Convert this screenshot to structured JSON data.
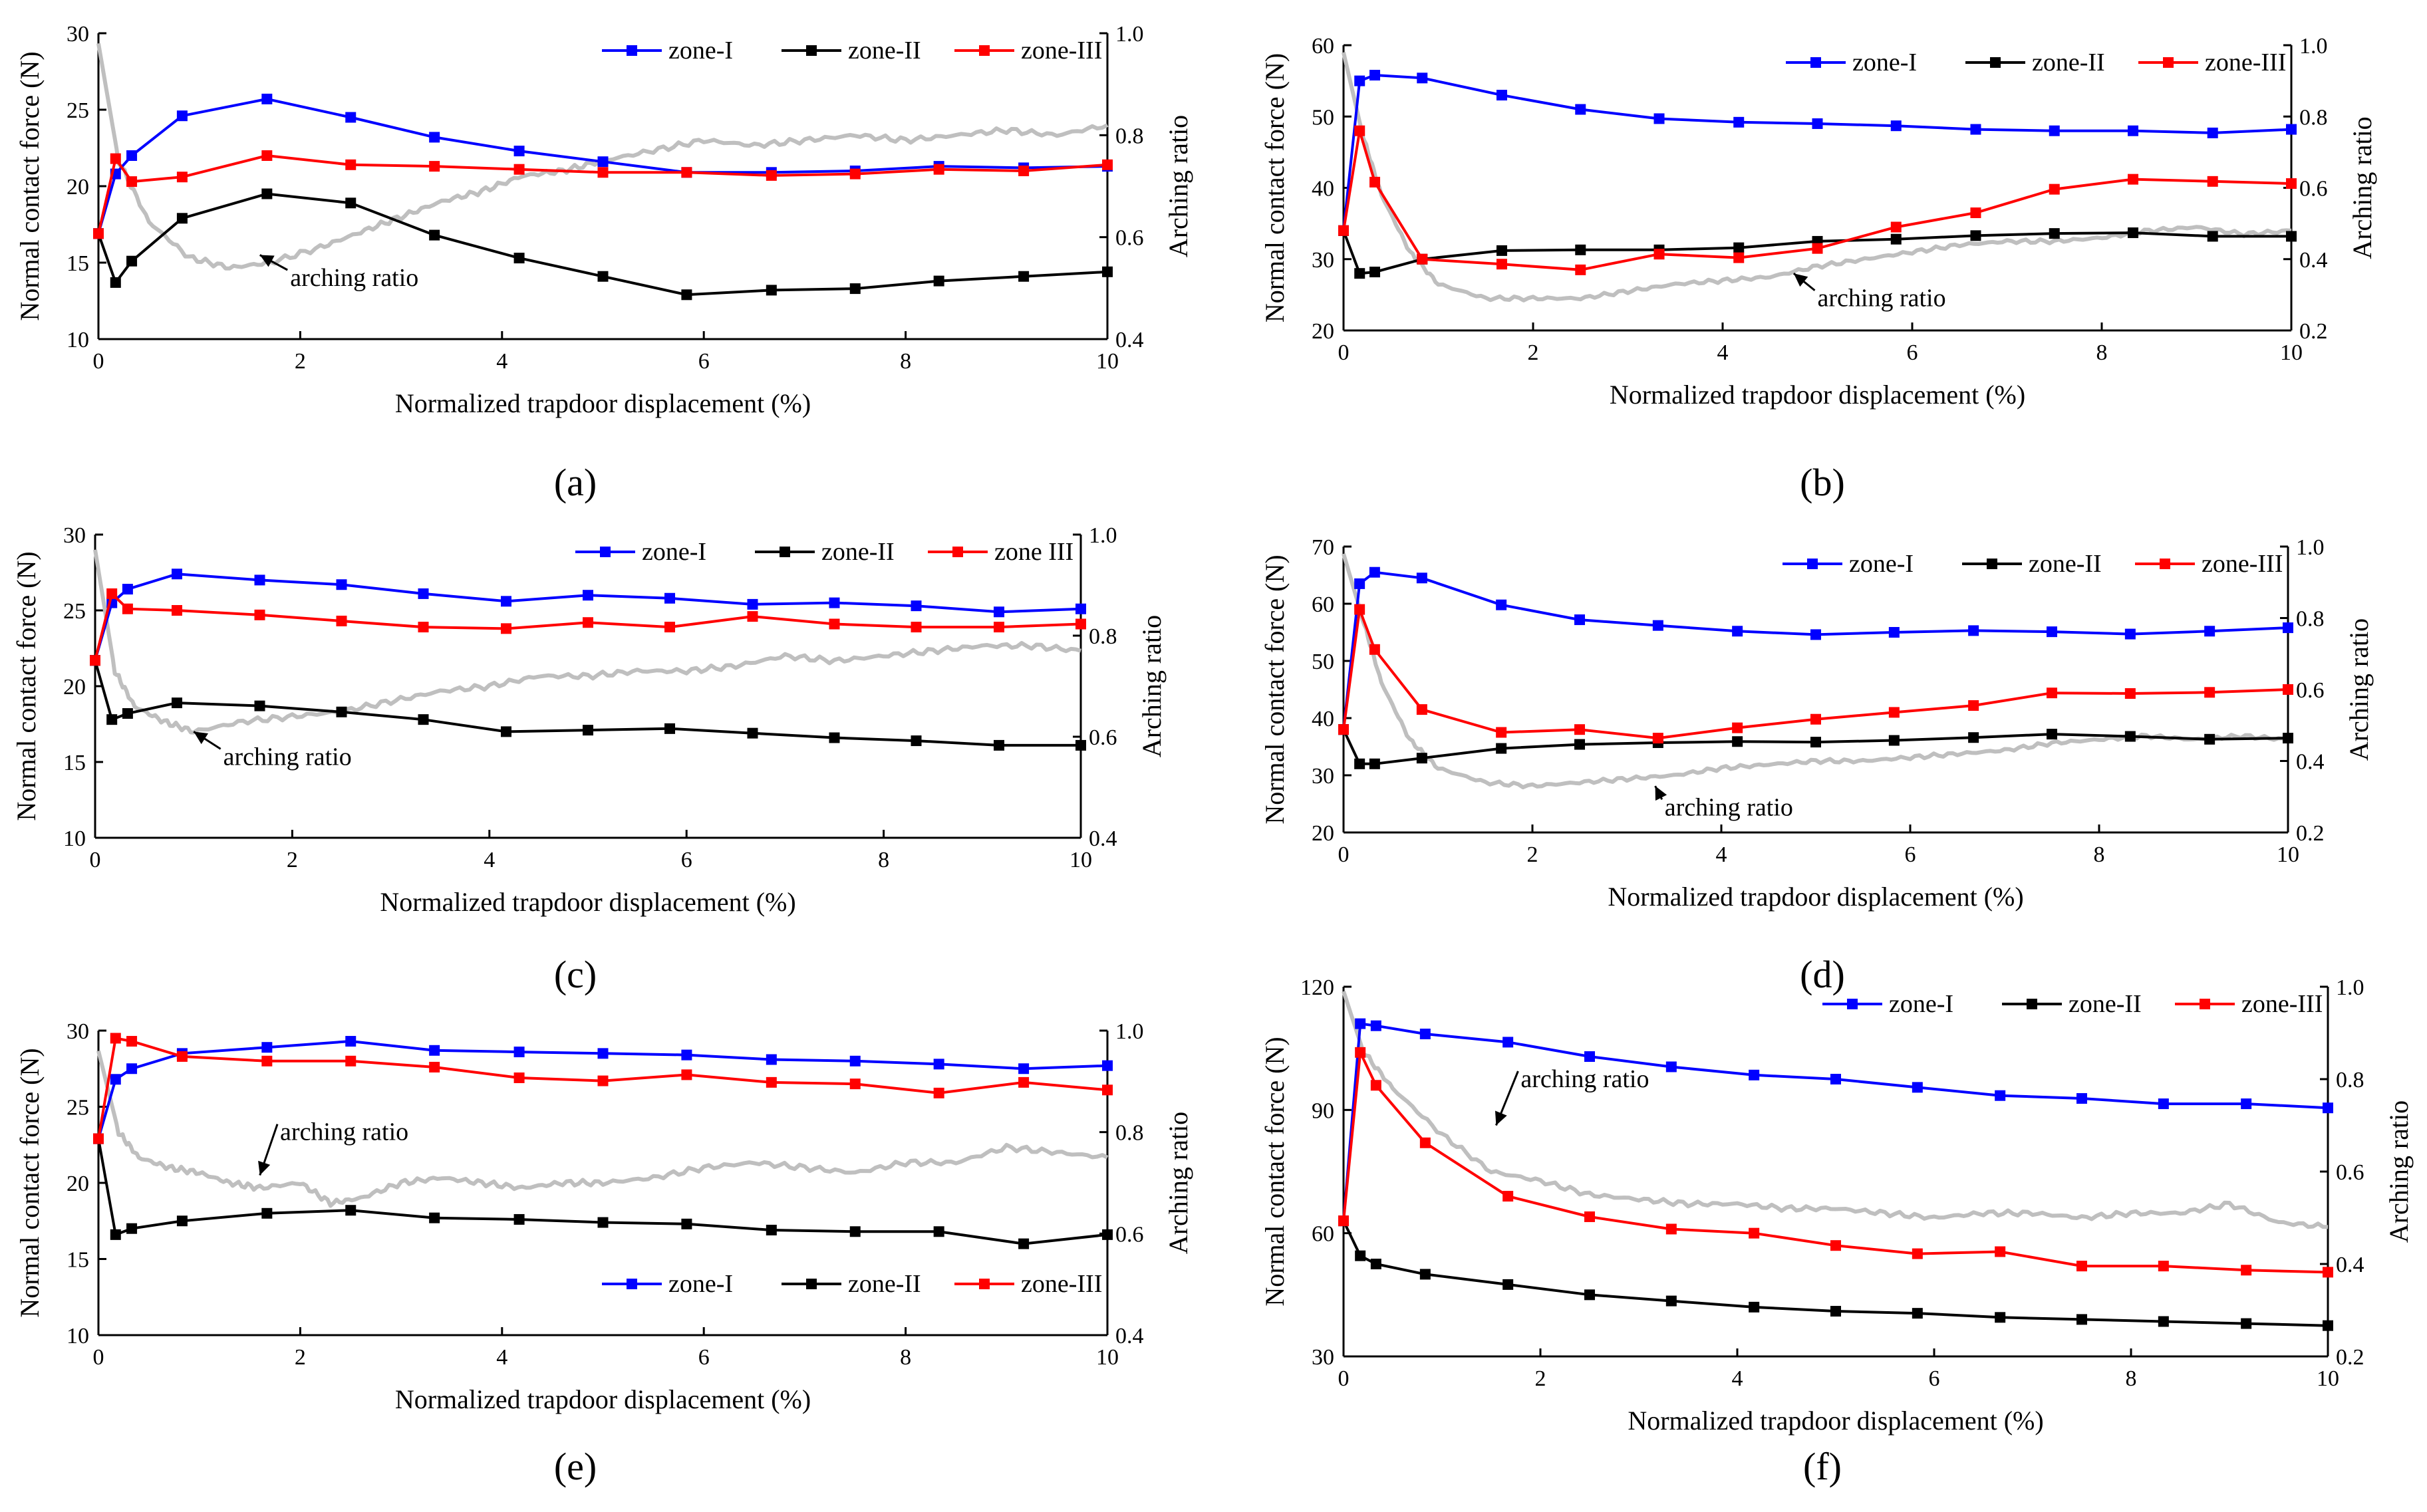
{
  "chart_data": [
    {
      "id": "a",
      "type": "line",
      "caption": "(a)",
      "xlabel": "Normalized trapdoor displacement (%)",
      "ylabel": "Normal contact force (N)",
      "y2label": "Arching ratio",
      "xlim": [
        0,
        10
      ],
      "ylim": [
        10,
        30
      ],
      "y2lim": [
        0.4,
        1.0
      ],
      "xticks": [
        "0",
        "2",
        "4",
        "6",
        "8",
        "10"
      ],
      "yticks": [
        "10",
        "15",
        "20",
        "25",
        "30"
      ],
      "y2ticks": [
        "0.4",
        "0.6",
        "0.8",
        "1.0"
      ],
      "legend": [
        "zone-I",
        "zone-II",
        "zone-III"
      ],
      "legend_position": "top-right",
      "x": [
        0,
        0.17,
        0.33,
        0.83,
        1.67,
        2.5,
        3.33,
        4.17,
        5.0,
        5.83,
        6.67,
        7.5,
        8.33,
        9.17,
        10.0
      ],
      "series": [
        {
          "name": "zone-I",
          "color": "#0000ff",
          "values": [
            16.9,
            20.8,
            22.0,
            24.6,
            25.7,
            24.5,
            23.2,
            22.3,
            21.6,
            20.9,
            20.9,
            21.0,
            21.3,
            21.2,
            21.3
          ]
        },
        {
          "name": "zone-II",
          "color": "#000000",
          "values": [
            16.9,
            13.7,
            15.1,
            17.9,
            19.5,
            18.9,
            16.8,
            15.3,
            14.1,
            12.9,
            13.2,
            13.3,
            13.8,
            14.1,
            14.4
          ]
        },
        {
          "name": "zone-III",
          "color": "#ff0000",
          "values": [
            16.9,
            21.8,
            20.3,
            20.6,
            22.0,
            21.4,
            21.3,
            21.1,
            20.9,
            20.9,
            20.7,
            20.8,
            21.1,
            21.0,
            21.4
          ]
        }
      ],
      "arching": {
        "name": "arching ratio",
        "color": "#bfbfbf",
        "x": [
          0,
          0.2,
          0.5,
          0.9,
          1.3,
          1.7,
          2.2,
          2.6,
          3.0,
          3.4,
          3.8,
          4.2,
          4.6,
          5.0,
          5.5,
          6.0,
          6.5,
          7.0,
          7.5,
          8.0,
          8.5,
          9.0,
          9.5,
          10.0
        ],
        "values": [
          0.98,
          0.75,
          0.63,
          0.56,
          0.54,
          0.55,
          0.58,
          0.61,
          0.64,
          0.67,
          0.69,
          0.72,
          0.73,
          0.75,
          0.77,
          0.79,
          0.78,
          0.79,
          0.8,
          0.79,
          0.8,
          0.81,
          0.8,
          0.82
        ]
      },
      "annotation": {
        "text": "arching ratio",
        "x": 1.9,
        "y2": 0.52,
        "ax": 1.6,
        "ay2": 0.565
      }
    },
    {
      "id": "b",
      "type": "line",
      "caption": "(b)",
      "xlabel": "Normalized trapdoor displacement (%)",
      "ylabel": "Normal contact force (N)",
      "y2label": "Arching ratio",
      "xlim": [
        0,
        10
      ],
      "ylim": [
        20,
        60
      ],
      "y2lim": [
        0.2,
        1.0
      ],
      "xticks": [
        "0",
        "2",
        "4",
        "6",
        "8",
        "10"
      ],
      "yticks": [
        "20",
        "30",
        "40",
        "50",
        "60"
      ],
      "y2ticks": [
        "0.2",
        "0.4",
        "0.6",
        "0.8",
        "1.0"
      ],
      "legend": [
        "zone-I",
        "zone-II",
        "zone-III"
      ],
      "legend_position": "top-right",
      "x": [
        0,
        0.17,
        0.33,
        0.83,
        1.67,
        2.5,
        3.33,
        4.17,
        5.0,
        5.83,
        6.67,
        7.5,
        8.33,
        9.17,
        10.0
      ],
      "series": [
        {
          "name": "zone-I",
          "color": "#0000ff",
          "values": [
            34.0,
            55.0,
            55.8,
            55.4,
            53.0,
            51.0,
            49.7,
            49.2,
            49.0,
            48.7,
            48.2,
            48.0,
            48.0,
            47.7,
            48.2
          ]
        },
        {
          "name": "zone-II",
          "color": "#000000",
          "values": [
            34.0,
            28.0,
            28.2,
            30.0,
            31.2,
            31.3,
            31.3,
            31.6,
            32.5,
            32.8,
            33.3,
            33.6,
            33.7,
            33.2,
            33.2
          ]
        },
        {
          "name": "zone-III",
          "color": "#ff0000",
          "values": [
            34.0,
            48.0,
            40.8,
            30.0,
            29.3,
            28.5,
            30.7,
            30.2,
            31.5,
            34.5,
            36.5,
            39.8,
            41.2,
            40.9,
            40.6
          ]
        }
      ],
      "arching": {
        "name": "arching ratio",
        "color": "#bfbfbf",
        "x": [
          0,
          0.2,
          0.4,
          0.7,
          1.0,
          1.5,
          2.0,
          2.5,
          3.0,
          3.5,
          4.0,
          4.5,
          5.0,
          5.5,
          6.0,
          6.5,
          7.0,
          7.5,
          8.0,
          8.5,
          9.0,
          9.5,
          10.0
        ],
        "values": [
          0.98,
          0.75,
          0.58,
          0.42,
          0.33,
          0.29,
          0.29,
          0.29,
          0.31,
          0.33,
          0.34,
          0.35,
          0.38,
          0.4,
          0.42,
          0.44,
          0.45,
          0.45,
          0.46,
          0.48,
          0.49,
          0.47,
          0.48
        ]
      },
      "annotation": {
        "text": "arching ratio",
        "x": 5.0,
        "y2": 0.29,
        "ax": 4.75,
        "ay2": 0.36
      }
    },
    {
      "id": "c",
      "type": "line",
      "caption": "(c)",
      "xlabel": "Normalized trapdoor displacement (%)",
      "ylabel": "Normal contact force (N)",
      "y2label": "Arching ratio",
      "xlim": [
        0,
        10
      ],
      "ylim": [
        10,
        30
      ],
      "y2lim": [
        0.4,
        1.0
      ],
      "xticks": [
        "0",
        "2",
        "4",
        "6",
        "8",
        "10"
      ],
      "yticks": [
        "10",
        "15",
        "20",
        "25",
        "30"
      ],
      "y2ticks": [
        "0.4",
        "0.6",
        "0.8",
        "1.0"
      ],
      "legend": [
        "zone-I",
        "zone-II",
        "zone III"
      ],
      "legend_position": "top-right",
      "x": [
        0,
        0.17,
        0.33,
        0.83,
        1.67,
        2.5,
        3.33,
        4.17,
        5.0,
        5.83,
        6.67,
        7.5,
        8.33,
        9.17,
        10.0
      ],
      "series": [
        {
          "name": "zone-I",
          "color": "#0000ff",
          "values": [
            21.7,
            25.5,
            26.4,
            27.4,
            27.0,
            26.7,
            26.1,
            25.6,
            26.0,
            25.8,
            25.4,
            25.5,
            25.3,
            24.9,
            25.1
          ]
        },
        {
          "name": "zone-II",
          "color": "#000000",
          "values": [
            21.7,
            17.8,
            18.2,
            18.9,
            18.7,
            18.3,
            17.8,
            17.0,
            17.1,
            17.2,
            16.9,
            16.6,
            16.4,
            16.1,
            16.1
          ]
        },
        {
          "name": "zone III",
          "color": "#ff0000",
          "values": [
            21.7,
            26.1,
            25.1,
            25.0,
            24.7,
            24.3,
            23.9,
            23.8,
            24.2,
            23.9,
            24.6,
            24.1,
            23.9,
            23.9,
            24.1
          ]
        }
      ],
      "arching": {
        "name": "arching ratio",
        "color": "#bfbfbf",
        "x": [
          0,
          0.2,
          0.4,
          0.7,
          1.0,
          1.5,
          2.0,
          2.5,
          3.0,
          3.5,
          4.0,
          4.5,
          5.0,
          5.5,
          6.0,
          6.5,
          7.0,
          7.5,
          8.0,
          8.5,
          9.0,
          9.5,
          10.0
        ],
        "values": [
          0.97,
          0.73,
          0.66,
          0.63,
          0.61,
          0.63,
          0.64,
          0.65,
          0.67,
          0.69,
          0.7,
          0.72,
          0.72,
          0.73,
          0.73,
          0.74,
          0.76,
          0.75,
          0.76,
          0.77,
          0.78,
          0.78,
          0.77
        ]
      },
      "annotation": {
        "text": "arching ratio",
        "x": 1.3,
        "y2": 0.56,
        "ax": 1.0,
        "ay2": 0.61
      }
    },
    {
      "id": "d",
      "type": "line",
      "caption": "(d)",
      "xlabel": "Normalized trapdoor displacement (%)",
      "ylabel": "Normal contact force (N)",
      "y2label": "Arching ratio",
      "xlim": [
        0,
        10
      ],
      "ylim": [
        20,
        70
      ],
      "y2lim": [
        0.2,
        1.0
      ],
      "xticks": [
        "0",
        "2",
        "4",
        "6",
        "8",
        "10"
      ],
      "yticks": [
        "20",
        "30",
        "40",
        "50",
        "60",
        "70"
      ],
      "y2ticks": [
        "0.2",
        "0.4",
        "0.6",
        "0.8",
        "1.0"
      ],
      "legend": [
        "zone-I",
        "zone-II",
        "zone-III"
      ],
      "legend_position": "top-right",
      "x": [
        0,
        0.17,
        0.33,
        0.83,
        1.67,
        2.5,
        3.33,
        4.17,
        5.0,
        5.83,
        6.67,
        7.5,
        8.33,
        9.17,
        10.0
      ],
      "series": [
        {
          "name": "zone-I",
          "color": "#0000ff",
          "values": [
            38.0,
            63.5,
            65.5,
            64.5,
            59.8,
            57.2,
            56.2,
            55.2,
            54.6,
            55.0,
            55.3,
            55.1,
            54.7,
            55.2,
            55.8
          ]
        },
        {
          "name": "zone-II",
          "color": "#000000",
          "values": [
            38.0,
            32.0,
            32.0,
            33.0,
            34.7,
            35.4,
            35.7,
            35.9,
            35.8,
            36.1,
            36.6,
            37.2,
            36.8,
            36.3,
            36.5
          ]
        },
        {
          "name": "zone-III",
          "color": "#ff0000",
          "values": [
            38.0,
            59.0,
            52.0,
            41.5,
            37.5,
            38.0,
            36.5,
            38.3,
            39.8,
            41.0,
            42.2,
            44.4,
            44.3,
            44.5,
            45.0
          ]
        }
      ],
      "arching": {
        "name": "arching ratio",
        "color": "#bfbfbf",
        "x": [
          0,
          0.2,
          0.4,
          0.7,
          1.0,
          1.5,
          2.0,
          2.5,
          3.0,
          3.5,
          4.0,
          4.5,
          5.0,
          5.5,
          6.0,
          6.5,
          7.0,
          7.5,
          8.0,
          8.5,
          9.0,
          9.5,
          10.0
        ],
        "values": [
          0.98,
          0.8,
          0.62,
          0.46,
          0.38,
          0.34,
          0.33,
          0.34,
          0.35,
          0.36,
          0.38,
          0.39,
          0.4,
          0.4,
          0.41,
          0.42,
          0.43,
          0.45,
          0.46,
          0.47,
          0.46,
          0.47,
          0.46
        ]
      },
      "annotation": {
        "text": "arching ratio",
        "x": 3.4,
        "y2": 0.27,
        "ax": 3.3,
        "ay2": 0.33
      }
    },
    {
      "id": "e",
      "type": "line",
      "caption": "(e)",
      "xlabel": "Normalized trapdoor displacement (%)",
      "ylabel": "Normal contact force (N)",
      "y2label": "Arching ratio",
      "xlim": [
        0,
        10
      ],
      "ylim": [
        10,
        30
      ],
      "y2lim": [
        0.4,
        1.0
      ],
      "xticks": [
        "0",
        "2",
        "4",
        "6",
        "8",
        "10"
      ],
      "yticks": [
        "10",
        "15",
        "20",
        "25",
        "30"
      ],
      "y2ticks": [
        "0.4",
        "0.6",
        "0.8",
        "1.0"
      ],
      "legend": [
        "zone-I",
        "zone-II",
        "zone-III"
      ],
      "legend_position": "bottom-right",
      "x": [
        0,
        0.17,
        0.33,
        0.83,
        1.67,
        2.5,
        3.33,
        4.17,
        5.0,
        5.83,
        6.67,
        7.5,
        8.33,
        9.17,
        10.0
      ],
      "series": [
        {
          "name": "zone-I",
          "color": "#0000ff",
          "values": [
            22.9,
            26.8,
            27.5,
            28.5,
            28.9,
            29.3,
            28.7,
            28.6,
            28.5,
            28.4,
            28.1,
            28.0,
            27.8,
            27.5,
            27.7
          ]
        },
        {
          "name": "zone-II",
          "color": "#000000",
          "values": [
            22.9,
            16.6,
            17.0,
            17.5,
            18.0,
            18.2,
            17.7,
            17.6,
            17.4,
            17.3,
            16.9,
            16.8,
            16.8,
            16.0,
            16.6
          ]
        },
        {
          "name": "zone-III",
          "color": "#ff0000",
          "values": [
            22.9,
            29.5,
            29.3,
            28.3,
            28.0,
            28.0,
            27.6,
            26.9,
            26.7,
            27.1,
            26.6,
            26.5,
            25.9,
            26.6,
            26.1
          ]
        }
      ],
      "arching": {
        "name": "arching ratio",
        "color": "#bfbfbf",
        "x": [
          0,
          0.2,
          0.4,
          0.7,
          1.0,
          1.3,
          1.6,
          2.0,
          2.3,
          2.6,
          3.0,
          3.4,
          3.8,
          4.2,
          4.6,
          5.0,
          5.5,
          6.0,
          6.5,
          7.0,
          7.5,
          8.0,
          8.5,
          9.0,
          9.5,
          10.0
        ],
        "values": [
          0.96,
          0.8,
          0.75,
          0.73,
          0.72,
          0.7,
          0.69,
          0.7,
          0.66,
          0.67,
          0.7,
          0.71,
          0.7,
          0.69,
          0.7,
          0.7,
          0.71,
          0.73,
          0.74,
          0.73,
          0.72,
          0.74,
          0.74,
          0.77,
          0.76,
          0.75
        ]
      },
      "annotation": {
        "text": "arching ratio",
        "x": 1.8,
        "y2": 0.8,
        "ax": 1.6,
        "ay2": 0.715
      }
    },
    {
      "id": "f",
      "type": "line",
      "caption": "(f)",
      "xlabel": "Normalized trapdoor displacement (%)",
      "ylabel": "Normal contact force (N)",
      "y2label": "Arching ratio",
      "xlim": [
        0,
        10
      ],
      "ylim": [
        30,
        120
      ],
      "y2lim": [
        0.2,
        1.0
      ],
      "xticks": [
        "0",
        "2",
        "4",
        "6",
        "8",
        "10"
      ],
      "yticks": [
        "30",
        "60",
        "90",
        "120"
      ],
      "y2ticks": [
        "0.2",
        "0.4",
        "0.6",
        "0.8",
        "1.0"
      ],
      "legend": [
        "zone-I",
        "zone-II",
        "zone-III"
      ],
      "legend_position": "top-right",
      "x": [
        0,
        0.17,
        0.33,
        0.83,
        1.67,
        2.5,
        3.33,
        4.17,
        5.0,
        5.83,
        6.67,
        7.5,
        8.33,
        9.17,
        10.0
      ],
      "series": [
        {
          "name": "zone-I",
          "color": "#0000ff",
          "values": [
            63,
            111,
            110.5,
            108.5,
            106.5,
            103,
            100.5,
            98.5,
            97.5,
            95.5,
            93.5,
            92.8,
            91.5,
            91.5,
            90.5
          ]
        },
        {
          "name": "zone-II",
          "color": "#000000",
          "values": [
            63,
            54.5,
            52.5,
            50,
            47.5,
            45,
            43.5,
            42,
            41,
            40.5,
            39.5,
            39,
            38.5,
            38,
            37.5
          ]
        },
        {
          "name": "zone-III",
          "color": "#ff0000",
          "values": [
            63,
            104,
            96,
            82,
            69,
            64,
            61,
            60,
            57,
            55,
            55.5,
            52,
            52,
            51,
            50.5
          ]
        }
      ],
      "arching": {
        "name": "arching ratio",
        "color": "#bfbfbf",
        "x": [
          0,
          0.2,
          0.5,
          1.0,
          1.5,
          2.0,
          2.5,
          3.0,
          3.5,
          4.0,
          4.5,
          5.0,
          5.5,
          6.0,
          6.5,
          7.0,
          7.5,
          8.0,
          8.5,
          9.0,
          9.5,
          10.0
        ],
        "values": [
          0.99,
          0.86,
          0.78,
          0.68,
          0.6,
          0.58,
          0.55,
          0.54,
          0.53,
          0.53,
          0.52,
          0.52,
          0.51,
          0.5,
          0.51,
          0.51,
          0.5,
          0.51,
          0.51,
          0.53,
          0.49,
          0.48
        ]
      },
      "annotation": {
        "text": "arching ratio",
        "x": 1.8,
        "y2": 0.8,
        "ax": 1.55,
        "ay2": 0.7
      }
    }
  ]
}
